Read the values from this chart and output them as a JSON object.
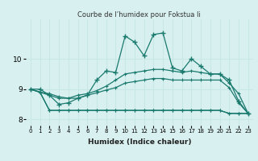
{
  "title": "Courbe de l’humidex pour Fokstua Ii",
  "xlabel": "Humidex (Indice chaleur)",
  "bg_color": "#d8f0f0",
  "grid_color": "#c8e8e8",
  "line_color": "#1a7a6e",
  "x_values": [
    0,
    1,
    2,
    3,
    4,
    5,
    6,
    7,
    8,
    9,
    10,
    11,
    12,
    13,
    14,
    15,
    16,
    17,
    18,
    19,
    20,
    21,
    22,
    23
  ],
  "series": {
    "max": [
      9.0,
      9.0,
      8.8,
      8.5,
      8.55,
      8.7,
      8.8,
      9.3,
      9.6,
      9.55,
      10.75,
      10.55,
      10.1,
      10.8,
      10.85,
      9.7,
      9.6,
      10.0,
      9.75,
      9.5,
      9.5,
      9.3,
      8.6,
      8.2
    ],
    "p75": [
      9.0,
      8.9,
      8.8,
      8.7,
      8.7,
      8.8,
      8.85,
      8.95,
      9.1,
      9.3,
      9.5,
      9.55,
      9.6,
      9.65,
      9.65,
      9.6,
      9.55,
      9.6,
      9.55,
      9.5,
      9.5,
      9.2,
      8.85,
      8.2
    ],
    "median": [
      9.0,
      8.9,
      8.85,
      8.75,
      8.7,
      8.7,
      8.8,
      8.88,
      8.97,
      9.05,
      9.2,
      9.25,
      9.3,
      9.35,
      9.35,
      9.3,
      9.3,
      9.3,
      9.3,
      9.3,
      9.3,
      9.05,
      8.55,
      8.2
    ],
    "p25": [
      9.0,
      8.9,
      8.3,
      8.3,
      8.3,
      8.3,
      8.3,
      8.3,
      8.3,
      8.3,
      8.3,
      8.3,
      8.3,
      8.3,
      8.3,
      8.3,
      8.3,
      8.3,
      8.3,
      8.3,
      8.3,
      8.2,
      8.2,
      8.2
    ],
    "min": [
      9.0,
      8.9,
      8.3,
      8.3,
      8.3,
      8.3,
      8.3,
      8.3,
      8.3,
      8.3,
      8.3,
      8.3,
      8.3,
      8.3,
      8.3,
      8.3,
      8.3,
      8.3,
      8.3,
      8.3,
      8.3,
      8.2,
      8.2,
      8.2
    ]
  },
  "ylim": [
    7.8,
    11.3
  ],
  "yticks": [
    8,
    9,
    10
  ],
  "xticks": [
    0,
    1,
    2,
    3,
    4,
    5,
    6,
    7,
    8,
    9,
    10,
    11,
    12,
    13,
    14,
    15,
    16,
    17,
    18,
    19,
    20,
    21,
    22,
    23
  ]
}
